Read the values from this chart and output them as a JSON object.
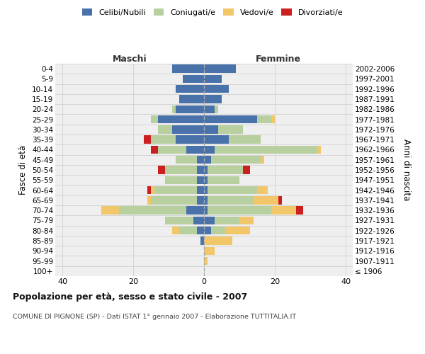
{
  "age_groups": [
    "100+",
    "95-99",
    "90-94",
    "85-89",
    "80-84",
    "75-79",
    "70-74",
    "65-69",
    "60-64",
    "55-59",
    "50-54",
    "45-49",
    "40-44",
    "35-39",
    "30-34",
    "25-29",
    "20-24",
    "15-19",
    "10-14",
    "5-9",
    "0-4"
  ],
  "birth_years": [
    "≤ 1906",
    "1907-1911",
    "1912-1916",
    "1917-1921",
    "1922-1926",
    "1927-1931",
    "1932-1936",
    "1937-1941",
    "1942-1946",
    "1947-1951",
    "1952-1956",
    "1957-1961",
    "1962-1966",
    "1967-1971",
    "1972-1976",
    "1977-1981",
    "1982-1986",
    "1987-1991",
    "1992-1996",
    "1997-2001",
    "2002-2006"
  ],
  "maschi": {
    "celibi": [
      0,
      0,
      0,
      1,
      2,
      3,
      5,
      2,
      2,
      2,
      2,
      2,
      5,
      8,
      9,
      13,
      8,
      7,
      8,
      6,
      9
    ],
    "coniugati": [
      0,
      0,
      0,
      0,
      5,
      8,
      19,
      13,
      12,
      9,
      9,
      6,
      8,
      7,
      4,
      2,
      1,
      0,
      0,
      0,
      0
    ],
    "vedovi": [
      0,
      0,
      0,
      0,
      2,
      0,
      5,
      1,
      1,
      0,
      0,
      0,
      0,
      0,
      0,
      0,
      0,
      0,
      0,
      0,
      0
    ],
    "divorziati": [
      0,
      0,
      0,
      0,
      0,
      0,
      0,
      0,
      1,
      0,
      2,
      0,
      2,
      2,
      0,
      0,
      0,
      0,
      0,
      0,
      0
    ]
  },
  "femmine": {
    "nubili": [
      0,
      0,
      0,
      0,
      2,
      3,
      1,
      1,
      1,
      1,
      1,
      2,
      3,
      7,
      4,
      15,
      3,
      5,
      7,
      5,
      9
    ],
    "coniugate": [
      0,
      0,
      0,
      0,
      4,
      7,
      18,
      13,
      14,
      9,
      10,
      14,
      29,
      9,
      7,
      4,
      1,
      0,
      0,
      0,
      0
    ],
    "vedove": [
      0,
      1,
      3,
      8,
      7,
      4,
      7,
      7,
      3,
      0,
      0,
      1,
      1,
      0,
      0,
      1,
      0,
      0,
      0,
      0,
      0
    ],
    "divorziate": [
      0,
      0,
      0,
      0,
      0,
      0,
      2,
      1,
      0,
      0,
      2,
      0,
      0,
      0,
      0,
      0,
      0,
      0,
      0,
      0,
      0
    ]
  },
  "colors": {
    "celibi": "#4a72aa",
    "coniugati": "#b8cfa0",
    "vedovi": "#f2c76a",
    "divorziati": "#cc2020"
  },
  "xlim": 42,
  "title": "Popolazione per età, sesso e stato civile - 2007",
  "subtitle": "COMUNE DI PIGNONE (SP) - Dati ISTAT 1° gennaio 2007 - Elaborazione TUTTITALIA.IT",
  "ylabel_left": "Fasce di età",
  "ylabel_right": "Anni di nascita",
  "xlabel_maschi": "Maschi",
  "xlabel_femmine": "Femmine",
  "legend_labels": [
    "Celibi/Nubili",
    "Coniugati/e",
    "Vedovi/e",
    "Divorziati/e"
  ],
  "bg_color": "#efefef",
  "grid_color": "#d0d0d0"
}
